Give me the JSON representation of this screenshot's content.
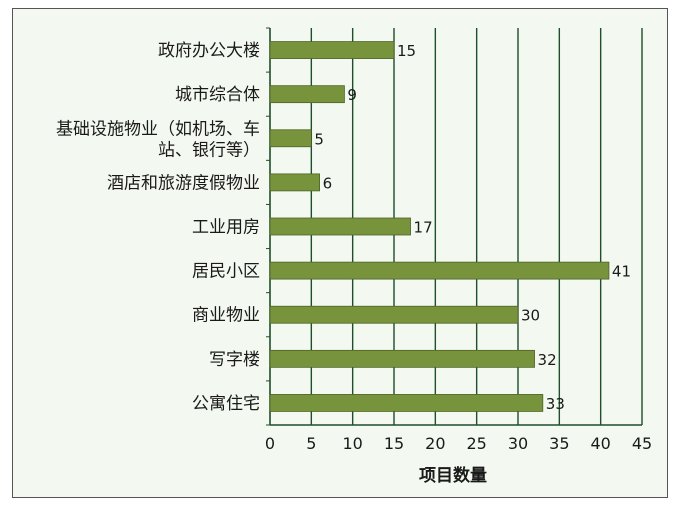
{
  "chart_data": {
    "type": "bar",
    "orientation": "horizontal",
    "title": "",
    "xlabel": "项目数量",
    "ylabel": "",
    "xlim": [
      0,
      45
    ],
    "xticks": [
      0,
      5,
      10,
      15,
      20,
      25,
      30,
      35,
      40,
      45
    ],
    "grid": true,
    "categories": [
      [
        "政府办公大楼"
      ],
      [
        "城市综合体"
      ],
      [
        "基础设施物业（如机场、车",
        "站、银行等）"
      ],
      [
        "酒店和旅游度假物业"
      ],
      [
        "工业用房"
      ],
      [
        "居民小区"
      ],
      [
        "商业物业"
      ],
      [
        "写字楼"
      ],
      [
        "公寓住宅"
      ]
    ],
    "values": [
      15,
      9,
      5,
      6,
      17,
      41,
      30,
      32,
      33
    ],
    "colors": {
      "bar": "#77933c",
      "bar_edge": "#4f6228",
      "grid": "#1f4e2c",
      "background": "#f3f9f0"
    }
  }
}
